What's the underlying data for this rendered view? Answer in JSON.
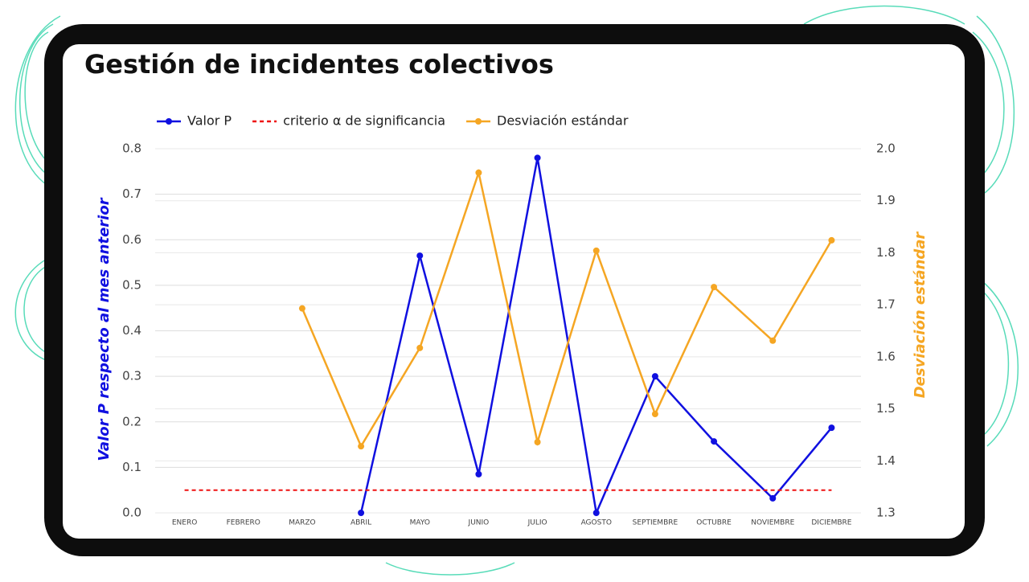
{
  "chart_data": {
    "type": "line",
    "title": "Gestión de incidentes colectivos",
    "y_label": "Valor P respecto al mes anterior",
    "y2_label": "Desviación estándar",
    "categories": [
      "ENERO",
      "FEBRERO",
      "MARZO",
      "ABRIL",
      "MAYO",
      "JUNIO",
      "JULIO",
      "AGOSTO",
      "SEPTIEMBRE",
      "OCTUBRE",
      "NOVIEMBRE",
      "DICIEMBRE"
    ],
    "series": [
      {
        "name": "Valor P",
        "color": "#1010e0",
        "markers": true,
        "values": [
          null,
          null,
          null,
          0.0,
          0.565,
          0.085,
          0.78,
          0.0,
          0.3,
          0.157,
          0.032,
          0.187
        ]
      },
      {
        "name": "criterio α de significancia",
        "color": "#ee1111",
        "dashed": true,
        "markers": false,
        "values": [
          0.05,
          0.05,
          0.05,
          0.05,
          0.05,
          0.05,
          0.05,
          0.05,
          0.05,
          0.05,
          0.05,
          0.05
        ]
      },
      {
        "name": "Desviación estándar",
        "color": "#f5a623",
        "markers": true,
        "axis": "y2",
        "values": [
          null,
          null,
          1.693,
          1.428,
          1.617,
          1.954,
          1.436,
          1.804,
          1.49,
          1.734,
          1.631,
          1.824
        ]
      }
    ],
    "ylim": [
      0,
      0.8
    ],
    "yticks": [
      {
        "value": 0,
        "label": "0.0"
      },
      0.1,
      0.2,
      0.3,
      0.4,
      0.5,
      0.6,
      0.7,
      0.8
    ],
    "y2lim": [
      1.3,
      2.0
    ],
    "y2ticks": [
      1.3,
      1.4,
      1.5,
      1.6,
      1.7,
      1.8,
      1.9,
      {
        "value": 2.0,
        "label": "2.0"
      }
    ],
    "y_label_color": "#1010e0",
    "y2_label_color": "#f5a623",
    "grid": true
  }
}
